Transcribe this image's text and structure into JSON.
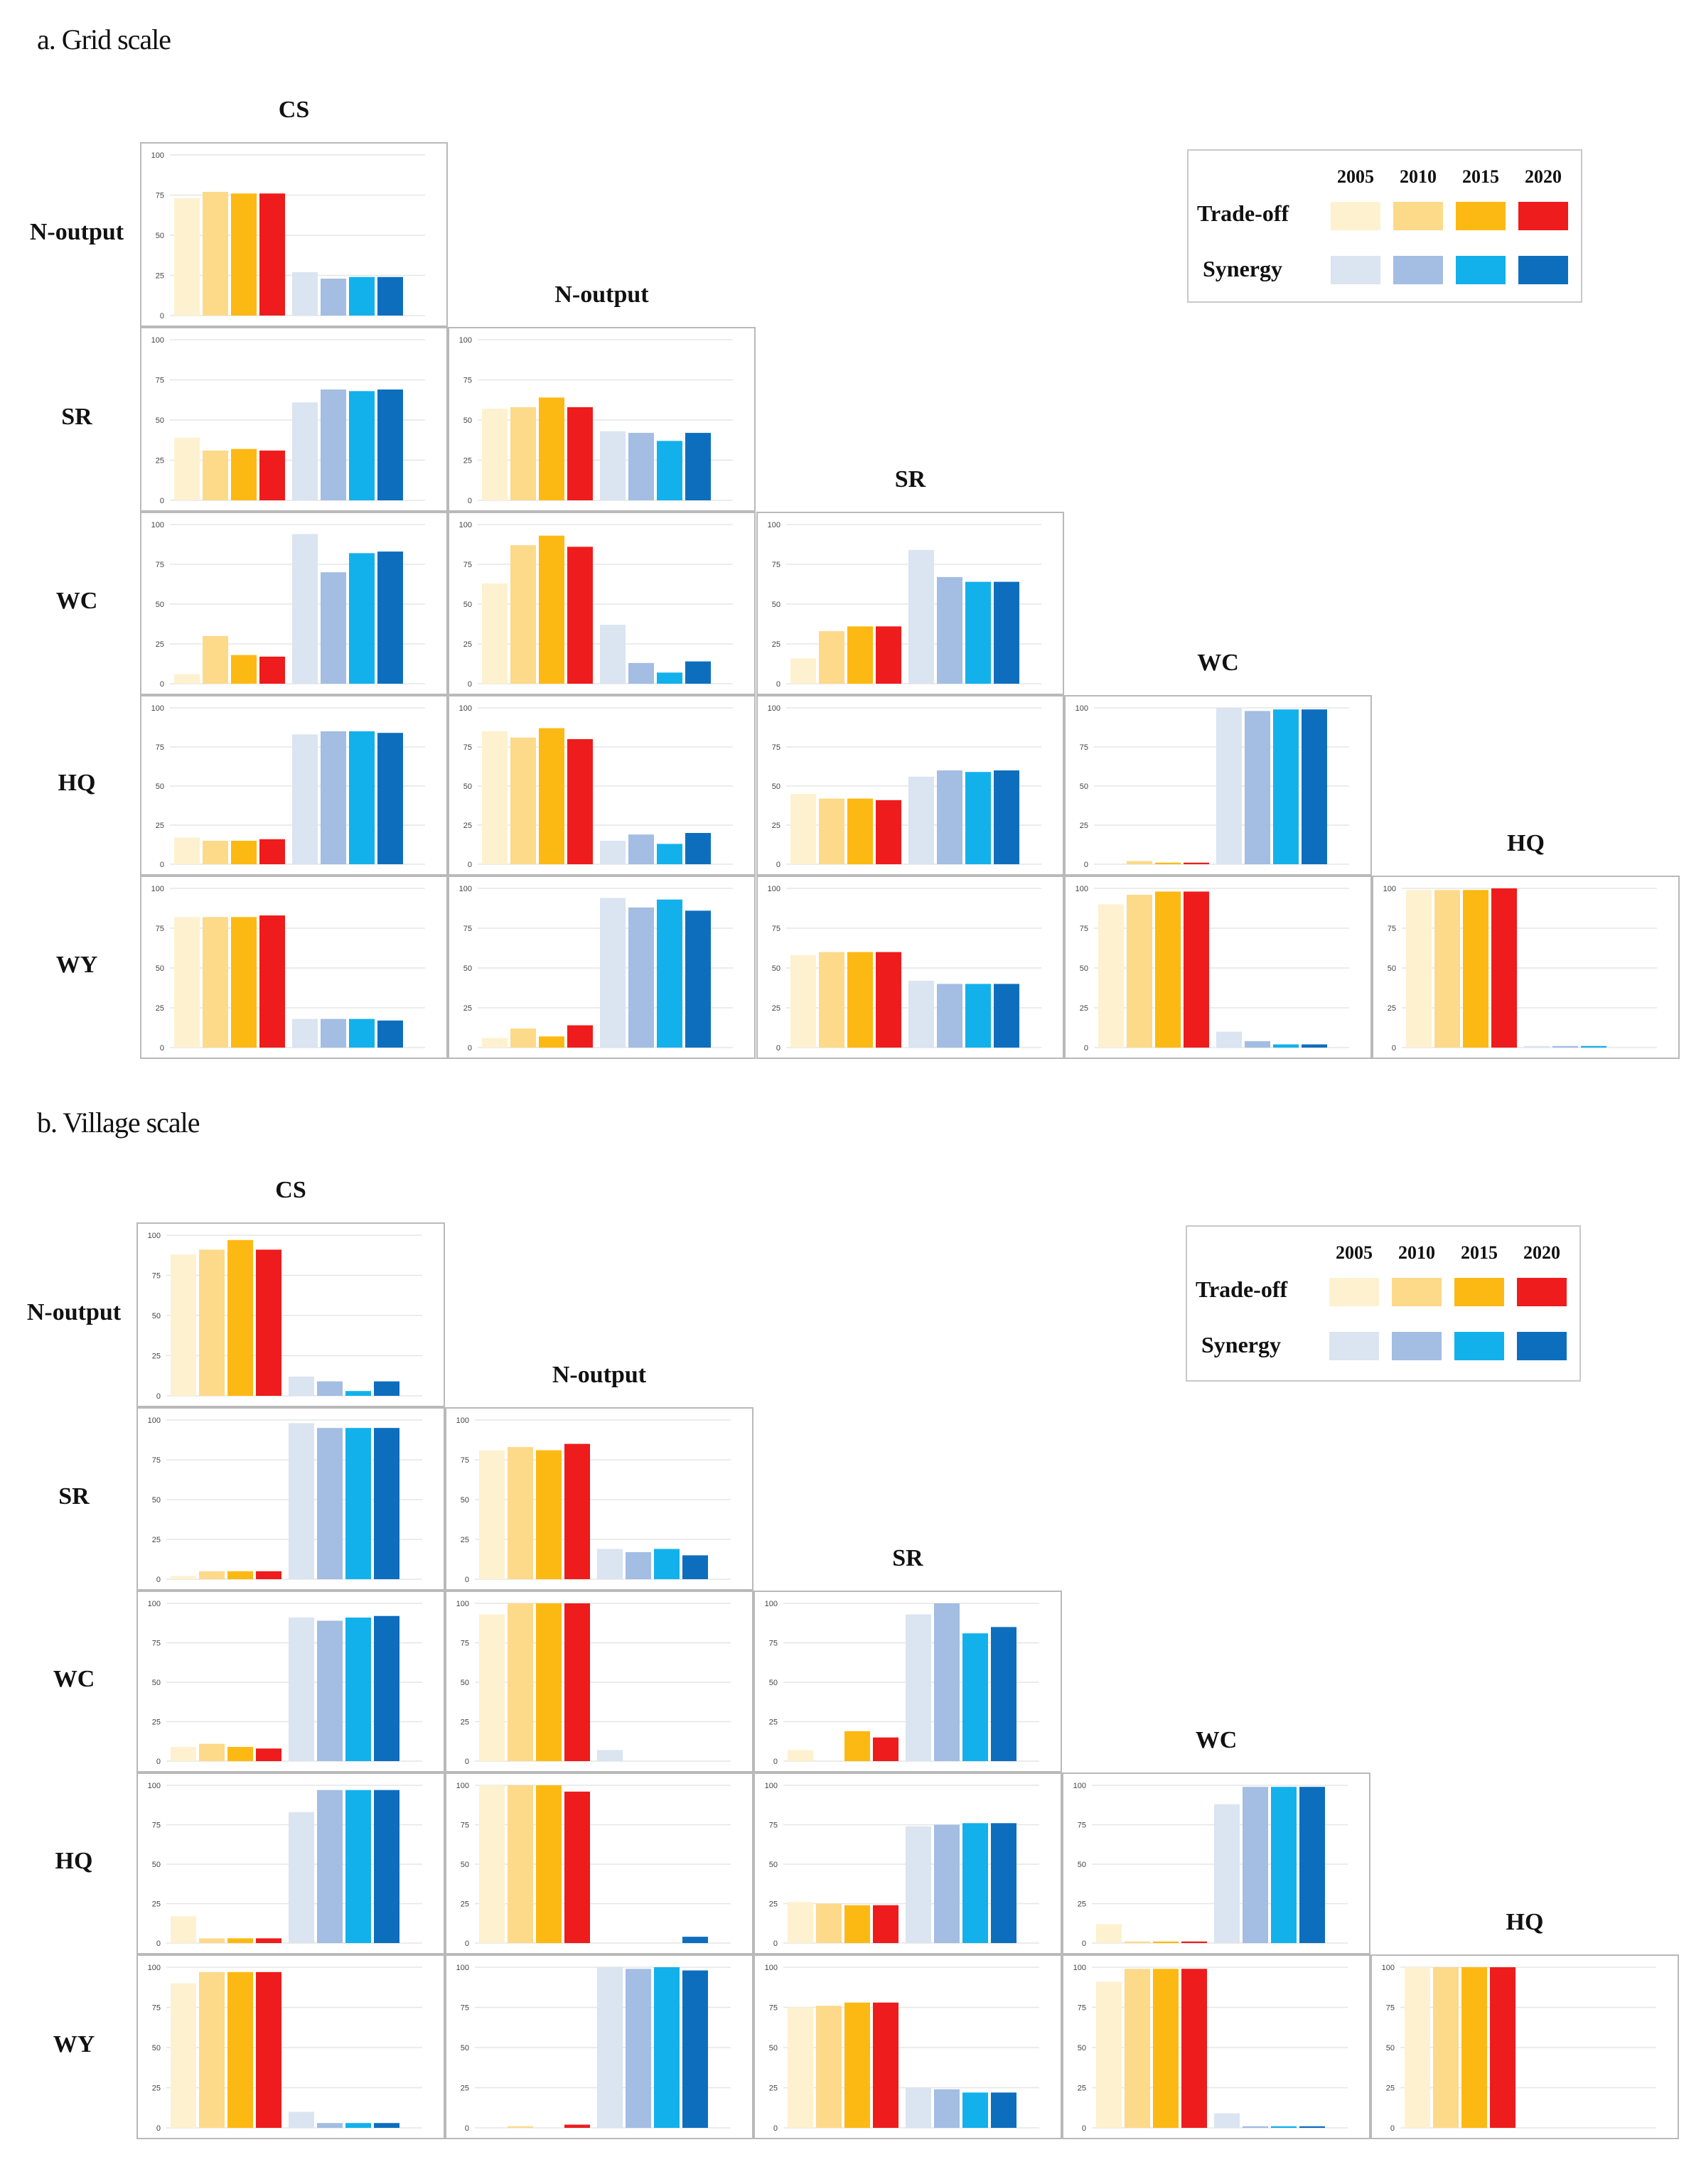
{
  "colors": {
    "tradeoff": [
      "#fdf1cf",
      "#fdd98a",
      "#fdb913",
      "#ee1c1c"
    ],
    "synergy": [
      "#dbe4f1",
      "#a3bde3",
      "#12b1ec",
      "#0e6ebe"
    ],
    "grid_line": "#e6e6e6",
    "panel_border": "#b9b9b9",
    "tick_text": "#444444"
  },
  "legend": {
    "years": [
      "2005",
      "2010",
      "2015",
      "2020"
    ],
    "tradeoff_label": "Trade-off",
    "synergy_label": "Synergy"
  },
  "sections": [
    {
      "title": "a. Grid scale",
      "columns": [
        "CS",
        "N-output",
        "SR",
        "WC",
        "HQ"
      ],
      "rows": [
        "N-output",
        "SR",
        "WC",
        "HQ",
        "WY"
      ]
    },
    {
      "title": "b. Village scale",
      "columns": [
        "CS",
        "N-output",
        "SR",
        "WC",
        "HQ"
      ],
      "rows": [
        "N-output",
        "SR",
        "WC",
        "HQ",
        "WY"
      ]
    }
  ],
  "chart_data": [
    {
      "type": "bar",
      "title": "a. Grid scale",
      "ylim": [
        0,
        100
      ],
      "yticks": [
        0,
        25,
        50,
        75,
        100
      ],
      "series_names": [
        "Trade-off 2005",
        "Trade-off 2010",
        "Trade-off 2015",
        "Trade-off 2020",
        "Synergy 2005",
        "Synergy 2010",
        "Synergy 2015",
        "Synergy 2020"
      ],
      "panels": [
        {
          "row": "N-output",
          "col": "CS",
          "values": [
            73,
            77,
            76,
            76,
            27,
            23,
            24,
            24
          ]
        },
        {
          "row": "SR",
          "col": "CS",
          "values": [
            39,
            31,
            32,
            31,
            61,
            69,
            68,
            69
          ]
        },
        {
          "row": "SR",
          "col": "N-output",
          "values": [
            57,
            58,
            64,
            58,
            43,
            42,
            37,
            42
          ]
        },
        {
          "row": "WC",
          "col": "CS",
          "values": [
            6,
            30,
            18,
            17,
            94,
            70,
            82,
            83
          ]
        },
        {
          "row": "WC",
          "col": "N-output",
          "values": [
            63,
            87,
            93,
            86,
            37,
            13,
            7,
            14
          ]
        },
        {
          "row": "WC",
          "col": "SR",
          "values": [
            16,
            33,
            36,
            36,
            84,
            67,
            64,
            64
          ]
        },
        {
          "row": "HQ",
          "col": "CS",
          "values": [
            17,
            15,
            15,
            16,
            83,
            85,
            85,
            84
          ]
        },
        {
          "row": "HQ",
          "col": "N-output",
          "values": [
            85,
            81,
            87,
            80,
            15,
            19,
            13,
            20
          ]
        },
        {
          "row": "HQ",
          "col": "SR",
          "values": [
            45,
            42,
            42,
            41,
            56,
            60,
            59,
            60
          ]
        },
        {
          "row": "HQ",
          "col": "WC",
          "values": [
            0,
            2,
            1,
            1,
            100,
            98,
            99,
            99
          ]
        },
        {
          "row": "WY",
          "col": "CS",
          "values": [
            82,
            82,
            82,
            83,
            18,
            18,
            18,
            17
          ]
        },
        {
          "row": "WY",
          "col": "N-output",
          "values": [
            6,
            12,
            7,
            14,
            94,
            88,
            93,
            86
          ]
        },
        {
          "row": "WY",
          "col": "SR",
          "values": [
            58,
            60,
            60,
            60,
            42,
            40,
            40,
            40
          ]
        },
        {
          "row": "WY",
          "col": "WC",
          "values": [
            90,
            96,
            98,
            98,
            10,
            4,
            2,
            2
          ]
        },
        {
          "row": "WY",
          "col": "HQ",
          "values": [
            99,
            99,
            99,
            100,
            1,
            1,
            1,
            0
          ]
        }
      ]
    },
    {
      "type": "bar",
      "title": "b. Village scale",
      "ylim": [
        0,
        100
      ],
      "yticks": [
        0,
        25,
        50,
        75,
        100
      ],
      "series_names": [
        "Trade-off 2005",
        "Trade-off 2010",
        "Trade-off 2015",
        "Trade-off 2020",
        "Synergy 2005",
        "Synergy 2010",
        "Synergy 2015",
        "Synergy 2020"
      ],
      "panels": [
        {
          "row": "N-output",
          "col": "CS",
          "values": [
            88,
            91,
            97,
            91,
            12,
            9,
            3,
            9
          ]
        },
        {
          "row": "SR",
          "col": "CS",
          "values": [
            2,
            5,
            5,
            5,
            98,
            95,
            95,
            95
          ]
        },
        {
          "row": "SR",
          "col": "N-output",
          "values": [
            81,
            83,
            81,
            85,
            19,
            17,
            19,
            15
          ]
        },
        {
          "row": "WC",
          "col": "CS",
          "values": [
            9,
            11,
            9,
            8,
            91,
            89,
            91,
            92
          ]
        },
        {
          "row": "WC",
          "col": "N-output",
          "values": [
            93,
            100,
            100,
            100,
            7,
            0,
            0,
            0
          ]
        },
        {
          "row": "WC",
          "col": "SR",
          "values": [
            7,
            0,
            19,
            15,
            93,
            100,
            81,
            85
          ]
        },
        {
          "row": "HQ",
          "col": "CS",
          "values": [
            17,
            3,
            3,
            3,
            83,
            97,
            97,
            97
          ]
        },
        {
          "row": "HQ",
          "col": "N-output",
          "values": [
            100,
            100,
            100,
            96,
            0,
            0,
            0,
            4
          ]
        },
        {
          "row": "HQ",
          "col": "SR",
          "values": [
            26,
            25,
            24,
            24,
            74,
            75,
            76,
            76
          ]
        },
        {
          "row": "HQ",
          "col": "WC",
          "values": [
            12,
            1,
            1,
            1,
            88,
            99,
            99,
            99
          ]
        },
        {
          "row": "WY",
          "col": "CS",
          "values": [
            90,
            97,
            97,
            97,
            10,
            3,
            3,
            3
          ]
        },
        {
          "row": "WY",
          "col": "N-output",
          "values": [
            0,
            1,
            0,
            2,
            100,
            99,
            100,
            98
          ]
        },
        {
          "row": "WY",
          "col": "SR",
          "values": [
            75,
            76,
            78,
            78,
            25,
            24,
            22,
            22
          ]
        },
        {
          "row": "WY",
          "col": "WC",
          "values": [
            91,
            99,
            99,
            99,
            9,
            1,
            1,
            1
          ]
        },
        {
          "row": "WY",
          "col": "HQ",
          "values": [
            100,
            100,
            100,
            100,
            0,
            0,
            0,
            0
          ]
        }
      ]
    }
  ]
}
